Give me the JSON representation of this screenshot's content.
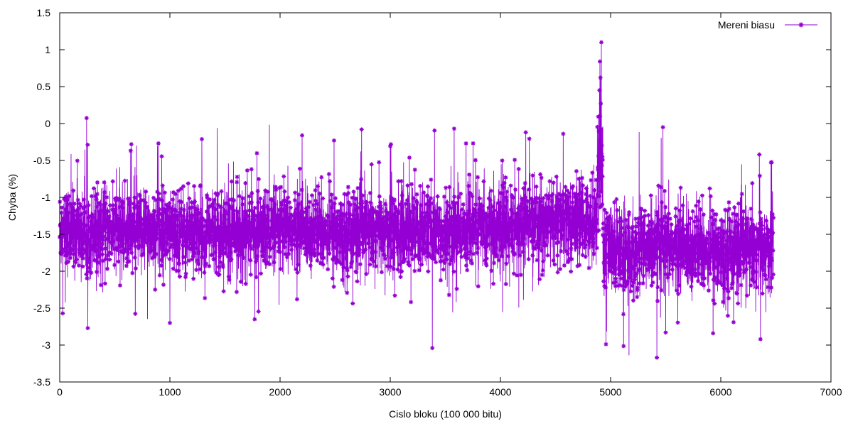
{
  "chart_data": {
    "type": "line",
    "title": "",
    "xlabel": "Cislo bloku (100 000 bitu)",
    "ylabel": "Chyba (%)",
    "xlim": [
      0,
      7000
    ],
    "ylim": [
      -3.5,
      1.5
    ],
    "x_ticks": [
      "0",
      "1000",
      "2000",
      "3000",
      "4000",
      "5000",
      "6000",
      "7000"
    ],
    "y_ticks": [
      "-3.5",
      "-3",
      "-2.5",
      "-2",
      "-1.5",
      "-1",
      "-0.5",
      "0",
      "0.5",
      "1",
      "1.5"
    ],
    "grid": false,
    "legend_position": "top-right",
    "series": [
      {
        "name": "Mereni biasu",
        "color": "#9400d3",
        "marker": "star",
        "n_points": 6480,
        "segments": [
          {
            "x_start": 0,
            "x_end": 4880,
            "mean": -1.45,
            "spread": 0.28
          },
          {
            "x_start": 4880,
            "x_end": 4930,
            "mean": -0.6,
            "spread": 0.4
          },
          {
            "x_start": 4930,
            "x_end": 6480,
            "mean": -1.7,
            "spread": 0.3
          }
        ],
        "notable_points": [
          {
            "x": 4916,
            "y": 1.1
          },
          {
            "x": 4903,
            "y": 0.84
          },
          {
            "x": 4908,
            "y": 0.62
          },
          {
            "x": 4899,
            "y": 0.45
          },
          {
            "x": 4911,
            "y": 0.27
          },
          {
            "x": 4905,
            "y": 0.1
          },
          {
            "x": 4895,
            "y": -0.1
          },
          {
            "x": 4920,
            "y": -0.3
          },
          {
            "x": 4925,
            "y": -0.45
          },
          {
            "x": 5475,
            "y": -0.05
          },
          {
            "x": 2740,
            "y": -0.08
          },
          {
            "x": 3580,
            "y": -0.07
          },
          {
            "x": 2200,
            "y": -0.16
          },
          {
            "x": 4230,
            "y": -0.12
          },
          {
            "x": 4570,
            "y": -0.14
          },
          {
            "x": 2490,
            "y": -0.23
          },
          {
            "x": 650,
            "y": -0.28
          },
          {
            "x": 6350,
            "y": -0.42
          },
          {
            "x": 255,
            "y": -2.77
          },
          {
            "x": 1000,
            "y": -2.7
          },
          {
            "x": 1770,
            "y": -2.65
          },
          {
            "x": 5420,
            "y": -3.17
          },
          {
            "x": 6360,
            "y": -2.92
          },
          {
            "x": 5500,
            "y": -2.83
          },
          {
            "x": 5930,
            "y": -2.84
          }
        ]
      }
    ]
  }
}
